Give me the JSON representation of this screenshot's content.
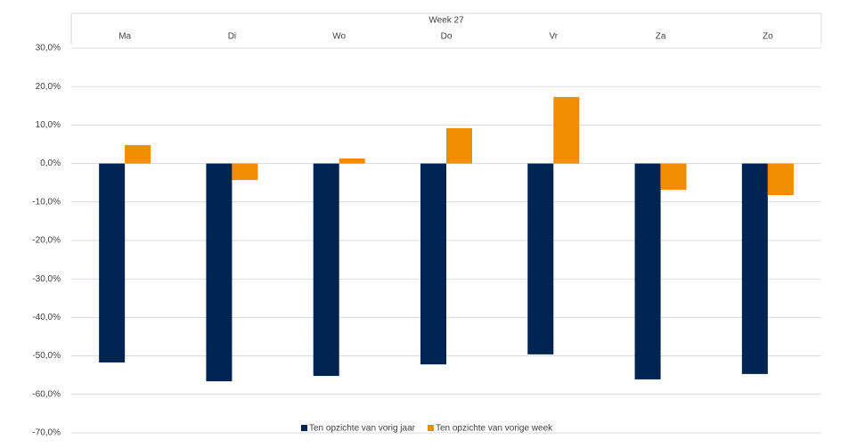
{
  "chart_data": {
    "type": "bar",
    "title": "Week 27",
    "categories": [
      "Ma",
      "Di",
      "Wo",
      "Do",
      "Vr",
      "Za",
      "Zo"
    ],
    "series": [
      {
        "name": "Ten opzichte van vorig jaar",
        "color": "#002452",
        "values": [
          -51.7,
          -56.6,
          -55.2,
          -52.2,
          -49.6,
          -56.1,
          -54.7
        ]
      },
      {
        "name": "Ten opzichte van vorige week",
        "color": "#f28c00",
        "values": [
          4.8,
          -4.3,
          1.3,
          9.2,
          17.3,
          -6.8,
          -8.2
        ]
      }
    ],
    "ylim": [
      -70,
      30
    ],
    "yticks": [
      {
        "value": -70,
        "label": "-70,0%"
      },
      {
        "value": -60,
        "label": "-60,0%"
      },
      {
        "value": -50,
        "label": "-50,0%"
      },
      {
        "value": -40,
        "label": "-40,0%"
      },
      {
        "value": -30,
        "label": "-30,0%"
      },
      {
        "value": -20,
        "label": "-20,0%"
      },
      {
        "value": -10,
        "label": "-10,0%"
      },
      {
        "value": 0,
        "label": "0,0%"
      },
      {
        "value": 10,
        "label": "10,0%"
      },
      {
        "value": 20,
        "label": "20,0%"
      },
      {
        "value": 30,
        "label": "30,0%"
      }
    ],
    "grid": true,
    "legend": "bottom"
  }
}
